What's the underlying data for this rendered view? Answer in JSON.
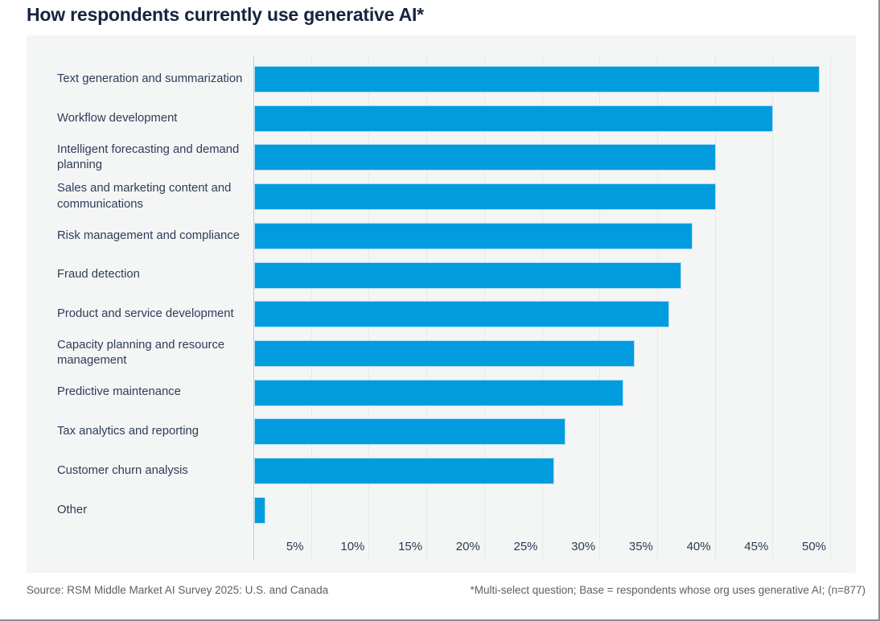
{
  "page": {
    "title": "How respondents currently use generative AI*",
    "footer": {
      "source": "Source: RSM Middle Market AI Survey 2025: U.S. and Canada",
      "footnote": "*Multi-select question; Base = respondents whose org uses generative AI; (n=877)"
    }
  },
  "colors": {
    "bar": "#009CDE",
    "bar_edge": "#AEDCF4",
    "title_text": "#16243E",
    "panel_background": "#F4F5F5",
    "gridline": "#E7E9E9",
    "axis_line": "#C9CDCD",
    "label_text": "#2E3D59",
    "footer_text": "#5A6067"
  },
  "chart_data": {
    "type": "bar",
    "orientation": "horizontal",
    "title": "How respondents currently use generative AI*",
    "categories": [
      "Text generation and summarization",
      "Workflow development",
      "Intelligent forecasting and demand planning",
      "Sales and marketing content and communications",
      "Risk management and compliance",
      "Fraud detection",
      "Product and service development",
      "Capacity planning and resource management",
      "Predictive maintenance",
      "Tax analytics and reporting",
      "Customer churn analysis",
      "Other"
    ],
    "values": [
      49,
      45,
      40,
      40,
      38,
      37,
      36,
      33,
      32,
      27,
      26,
      1
    ],
    "unit": "%",
    "x_ticks": [
      "5%",
      "10%",
      "15%",
      "20%",
      "25%",
      "30%",
      "35%",
      "40%",
      "45%",
      "50%"
    ],
    "x_tick_values": [
      5,
      10,
      15,
      20,
      25,
      30,
      35,
      40,
      45,
      50
    ],
    "xlim": [
      0,
      52
    ],
    "grid": true,
    "legend": false
  }
}
